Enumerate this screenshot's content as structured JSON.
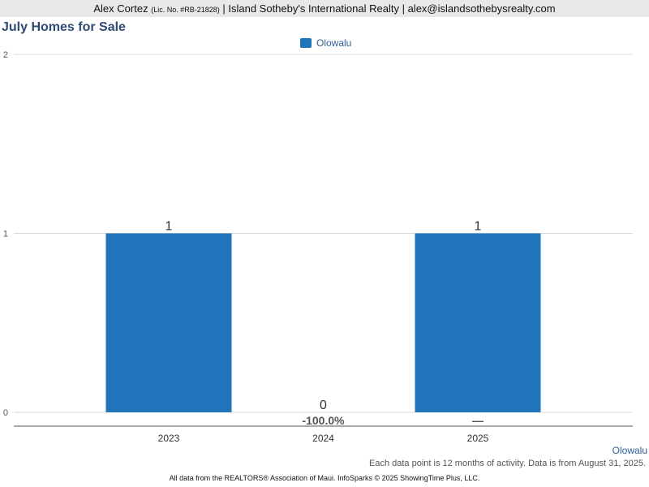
{
  "header": {
    "agent": "Alex Cortez",
    "license": "(Lic. No. #RB-21828)",
    "company": "| Island Sotheby's International Realty | alex@islandsothebysrealty.com"
  },
  "chart_data": {
    "type": "bar",
    "title": "July Homes for Sale",
    "categories": [
      "2023",
      "2024",
      "2025"
    ],
    "series": [
      {
        "name": "Olowalu",
        "values": [
          1,
          0,
          1
        ],
        "color": "#1f74ba"
      }
    ],
    "data_labels": [
      "1",
      "0",
      "1"
    ],
    "change_labels": [
      "",
      "-100.0%",
      "—"
    ],
    "ylim": [
      0,
      2
    ],
    "yticks": [
      "0",
      "1",
      "2"
    ],
    "grid": true,
    "legend": "top-center"
  },
  "footer": {
    "area": "Olowalu",
    "note": "Each data point is 12 months of activity. Data is from August 31, 2025.",
    "credit": "All data from the REALTORS® Association of Maui. InfoSparks © 2025 ShowingTime Plus, LLC."
  }
}
